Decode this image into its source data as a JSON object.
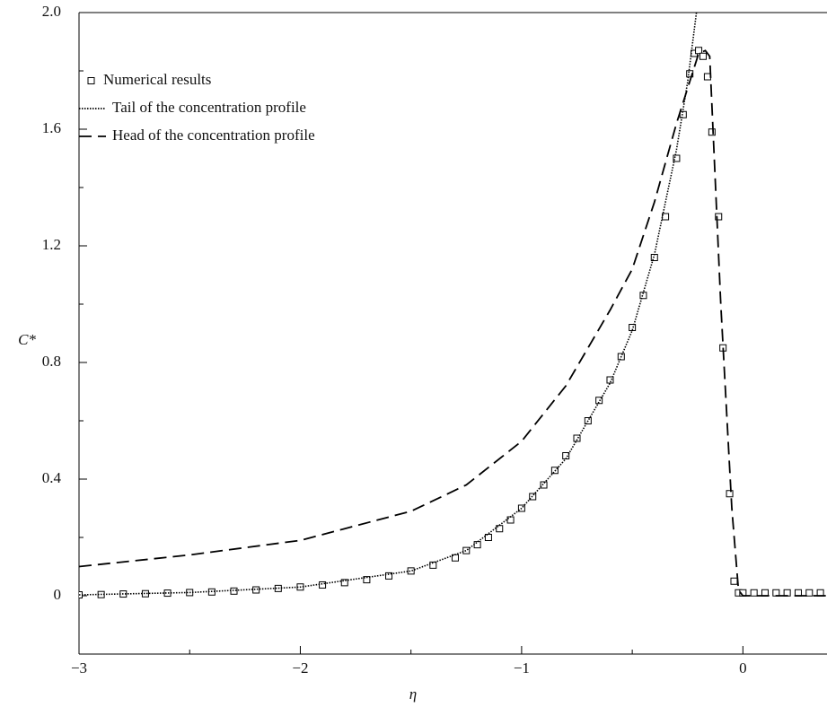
{
  "chart_data": {
    "type": "line",
    "xlabel": "η",
    "ylabel": "C*",
    "xlim": [
      -3,
      0.38
    ],
    "ylim": [
      -0.2,
      2.0
    ],
    "xticks": [
      {
        "value": -3,
        "label": "−3"
      },
      {
        "value": -2,
        "label": "−2"
      },
      {
        "value": -1,
        "label": "−1"
      },
      {
        "value": 0,
        "label": "0"
      }
    ],
    "xticks_minor": [
      -2.5,
      -1.5,
      -0.5
    ],
    "yticks": [
      0,
      0.4,
      0.8,
      1.2,
      1.6,
      {
        "value": 2,
        "label": "2.0"
      }
    ],
    "yticks_minor": [
      0.2,
      0.6,
      1.0,
      1.4,
      1.8
    ],
    "legend": "upper left",
    "series": [
      {
        "name": "Numerical results",
        "style": "markers",
        "color": "#000",
        "x": [
          -3.0,
          -2.9,
          -2.8,
          -2.7,
          -2.6,
          -2.5,
          -2.4,
          -2.3,
          -2.2,
          -2.1,
          -2.0,
          -1.9,
          -1.8,
          -1.7,
          -1.6,
          -1.5,
          -1.4,
          -1.3,
          -1.25,
          -1.2,
          -1.15,
          -1.1,
          -1.05,
          -1.0,
          -0.95,
          -0.9,
          -0.85,
          -0.8,
          -0.75,
          -0.7,
          -0.65,
          -0.6,
          -0.55,
          -0.5,
          -0.45,
          -0.4,
          -0.35,
          -0.3,
          -0.27,
          -0.24,
          -0.22,
          -0.2,
          -0.18,
          -0.16,
          -0.14,
          -0.11,
          -0.09,
          -0.06,
          -0.04,
          -0.02,
          0.0,
          0.05,
          0.1,
          0.15,
          0.2,
          0.25,
          0.3,
          0.35
        ],
        "values": [
          0.003,
          0.004,
          0.006,
          0.007,
          0.009,
          0.011,
          0.013,
          0.016,
          0.02,
          0.025,
          0.03,
          0.037,
          0.045,
          0.055,
          0.068,
          0.085,
          0.105,
          0.13,
          0.155,
          0.175,
          0.2,
          0.23,
          0.26,
          0.3,
          0.34,
          0.38,
          0.43,
          0.48,
          0.54,
          0.6,
          0.67,
          0.74,
          0.82,
          0.92,
          1.03,
          1.16,
          1.3,
          1.5,
          1.65,
          1.79,
          1.86,
          1.87,
          1.85,
          1.78,
          1.59,
          1.3,
          0.85,
          0.35,
          0.05,
          0.01,
          0.01,
          0.01,
          0.01,
          0.01,
          0.01,
          0.01,
          0.01,
          0.01
        ]
      },
      {
        "name": "Tail of the concentration profile",
        "style": "dotted",
        "color": "#000",
        "x": [
          -3.0,
          -2.5,
          -2.0,
          -1.5,
          -1.25,
          -1.0,
          -0.8,
          -0.6,
          -0.5,
          -0.4,
          -0.3,
          -0.25,
          -0.21
        ],
        "values": [
          0.003,
          0.011,
          0.03,
          0.085,
          0.155,
          0.3,
          0.47,
          0.73,
          0.91,
          1.17,
          1.53,
          1.76,
          2.0
        ]
      },
      {
        "name": "Head of the concentration profile",
        "style": "dashed",
        "color": "#000",
        "x": [
          -3.0,
          -2.5,
          -2.0,
          -1.5,
          -1.25,
          -1.0,
          -0.8,
          -0.6,
          -0.5,
          -0.4,
          -0.3,
          -0.2,
          -0.17,
          -0.15,
          -0.1,
          -0.05,
          -0.02,
          0.0,
          0.38
        ],
        "values": [
          0.1,
          0.14,
          0.19,
          0.29,
          0.38,
          0.53,
          0.72,
          0.98,
          1.12,
          1.35,
          1.62,
          1.86,
          1.87,
          1.85,
          1.0,
          0.3,
          0.02,
          0,
          0
        ]
      }
    ]
  }
}
